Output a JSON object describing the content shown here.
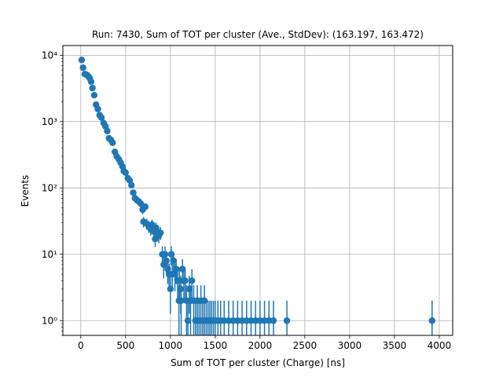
{
  "chart_data": {
    "type": "scatter",
    "title": "Run: 7430, Sum of TOT per cluster (Ave., StdDev): (163.197, 163.472)",
    "xlabel": "Sum of TOT per cluster (Charge) [ns]",
    "ylabel": "Events",
    "xlim": [
      -200,
      4150
    ],
    "ylim": [
      0.6,
      14000
    ],
    "yscale": "log",
    "grid": true,
    "error_bars": "sqrt(N)",
    "x_ticks": [
      0,
      500,
      1000,
      1500,
      2000,
      2500,
      3000,
      3500,
      4000
    ],
    "x_tick_labels": [
      "0",
      "500",
      "1000",
      "1500",
      "2000",
      "2500",
      "3000",
      "3500",
      "4000"
    ],
    "y_ticks": [
      1,
      10,
      100,
      1000,
      10000
    ],
    "y_tick_labels": [
      "10⁰",
      "10¹",
      "10²",
      "10³",
      "10⁴"
    ],
    "marker_color": "#1f77b4",
    "points": [
      {
        "x": 10,
        "y": 8500
      },
      {
        "x": 25,
        "y": 6500
      },
      {
        "x": 45,
        "y": 5200
      },
      {
        "x": 65,
        "y": 5100
      },
      {
        "x": 85,
        "y": 4800
      },
      {
        "x": 100,
        "y": 4500
      },
      {
        "x": 115,
        "y": 4000
      },
      {
        "x": 130,
        "y": 3200
      },
      {
        "x": 150,
        "y": 2500
      },
      {
        "x": 170,
        "y": 1800
      },
      {
        "x": 190,
        "y": 1550
      },
      {
        "x": 210,
        "y": 1250
      },
      {
        "x": 230,
        "y": 1150
      },
      {
        "x": 255,
        "y": 950
      },
      {
        "x": 275,
        "y": 850
      },
      {
        "x": 295,
        "y": 720
      },
      {
        "x": 315,
        "y": 560
      },
      {
        "x": 335,
        "y": 530
      },
      {
        "x": 355,
        "y": 480
      },
      {
        "x": 380,
        "y": 350
      },
      {
        "x": 400,
        "y": 300
      },
      {
        "x": 425,
        "y": 270
      },
      {
        "x": 445,
        "y": 240
      },
      {
        "x": 465,
        "y": 210
      },
      {
        "x": 480,
        "y": 180
      },
      {
        "x": 500,
        "y": 170
      },
      {
        "x": 525,
        "y": 140
      },
      {
        "x": 545,
        "y": 130
      },
      {
        "x": 565,
        "y": 110
      },
      {
        "x": 585,
        "y": 85
      },
      {
        "x": 605,
        "y": 70
      },
      {
        "x": 630,
        "y": 65
      },
      {
        "x": 650,
        "y": 62
      },
      {
        "x": 670,
        "y": 58
      },
      {
        "x": 690,
        "y": 47
      },
      {
        "x": 700,
        "y": 31
      },
      {
        "x": 720,
        "y": 52
      },
      {
        "x": 735,
        "y": 29
      },
      {
        "x": 760,
        "y": 26
      },
      {
        "x": 780,
        "y": 24
      },
      {
        "x": 795,
        "y": 28
      },
      {
        "x": 815,
        "y": 22
      },
      {
        "x": 830,
        "y": 17
      },
      {
        "x": 840,
        "y": 25
      },
      {
        "x": 855,
        "y": 22
      },
      {
        "x": 870,
        "y": 19
      },
      {
        "x": 890,
        "y": 21
      },
      {
        "x": 910,
        "y": 10
      },
      {
        "x": 925,
        "y": 7
      },
      {
        "x": 940,
        "y": 10
      },
      {
        "x": 955,
        "y": 8
      },
      {
        "x": 970,
        "y": 6
      },
      {
        "x": 985,
        "y": 5
      },
      {
        "x": 1000,
        "y": 3
      },
      {
        "x": 1010,
        "y": 10
      },
      {
        "x": 1020,
        "y": 5
      },
      {
        "x": 1035,
        "y": 8
      },
      {
        "x": 1050,
        "y": 5
      },
      {
        "x": 1065,
        "y": 6
      },
      {
        "x": 1080,
        "y": 4
      },
      {
        "x": 1095,
        "y": 2
      },
      {
        "x": 1100,
        "y": 4
      },
      {
        "x": 1115,
        "y": 3
      },
      {
        "x": 1120,
        "y": 2
      },
      {
        "x": 1135,
        "y": 6
      },
      {
        "x": 1150,
        "y": 4
      },
      {
        "x": 1165,
        "y": 4
      },
      {
        "x": 1180,
        "y": 2
      },
      {
        "x": 1195,
        "y": 1
      },
      {
        "x": 1210,
        "y": 3
      },
      {
        "x": 1225,
        "y": 2
      },
      {
        "x": 1240,
        "y": 4
      },
      {
        "x": 1260,
        "y": 2
      },
      {
        "x": 1280,
        "y": 1
      },
      {
        "x": 1300,
        "y": 2
      },
      {
        "x": 1320,
        "y": 1
      },
      {
        "x": 1340,
        "y": 2
      },
      {
        "x": 1360,
        "y": 1
      },
      {
        "x": 1380,
        "y": 2
      },
      {
        "x": 1400,
        "y": 1
      },
      {
        "x": 1420,
        "y": 1
      },
      {
        "x": 1440,
        "y": 1
      },
      {
        "x": 1460,
        "y": 1
      },
      {
        "x": 1480,
        "y": 1
      },
      {
        "x": 1500,
        "y": 1
      },
      {
        "x": 1530,
        "y": 1
      },
      {
        "x": 1560,
        "y": 1
      },
      {
        "x": 1600,
        "y": 1
      },
      {
        "x": 1650,
        "y": 1
      },
      {
        "x": 1700,
        "y": 1
      },
      {
        "x": 1750,
        "y": 1
      },
      {
        "x": 1800,
        "y": 1
      },
      {
        "x": 1850,
        "y": 1
      },
      {
        "x": 1900,
        "y": 1
      },
      {
        "x": 1950,
        "y": 1
      },
      {
        "x": 2000,
        "y": 1
      },
      {
        "x": 2050,
        "y": 1
      },
      {
        "x": 2100,
        "y": 1
      },
      {
        "x": 2150,
        "y": 1
      },
      {
        "x": 2300,
        "y": 1
      },
      {
        "x": 3920,
        "y": 1
      }
    ]
  }
}
